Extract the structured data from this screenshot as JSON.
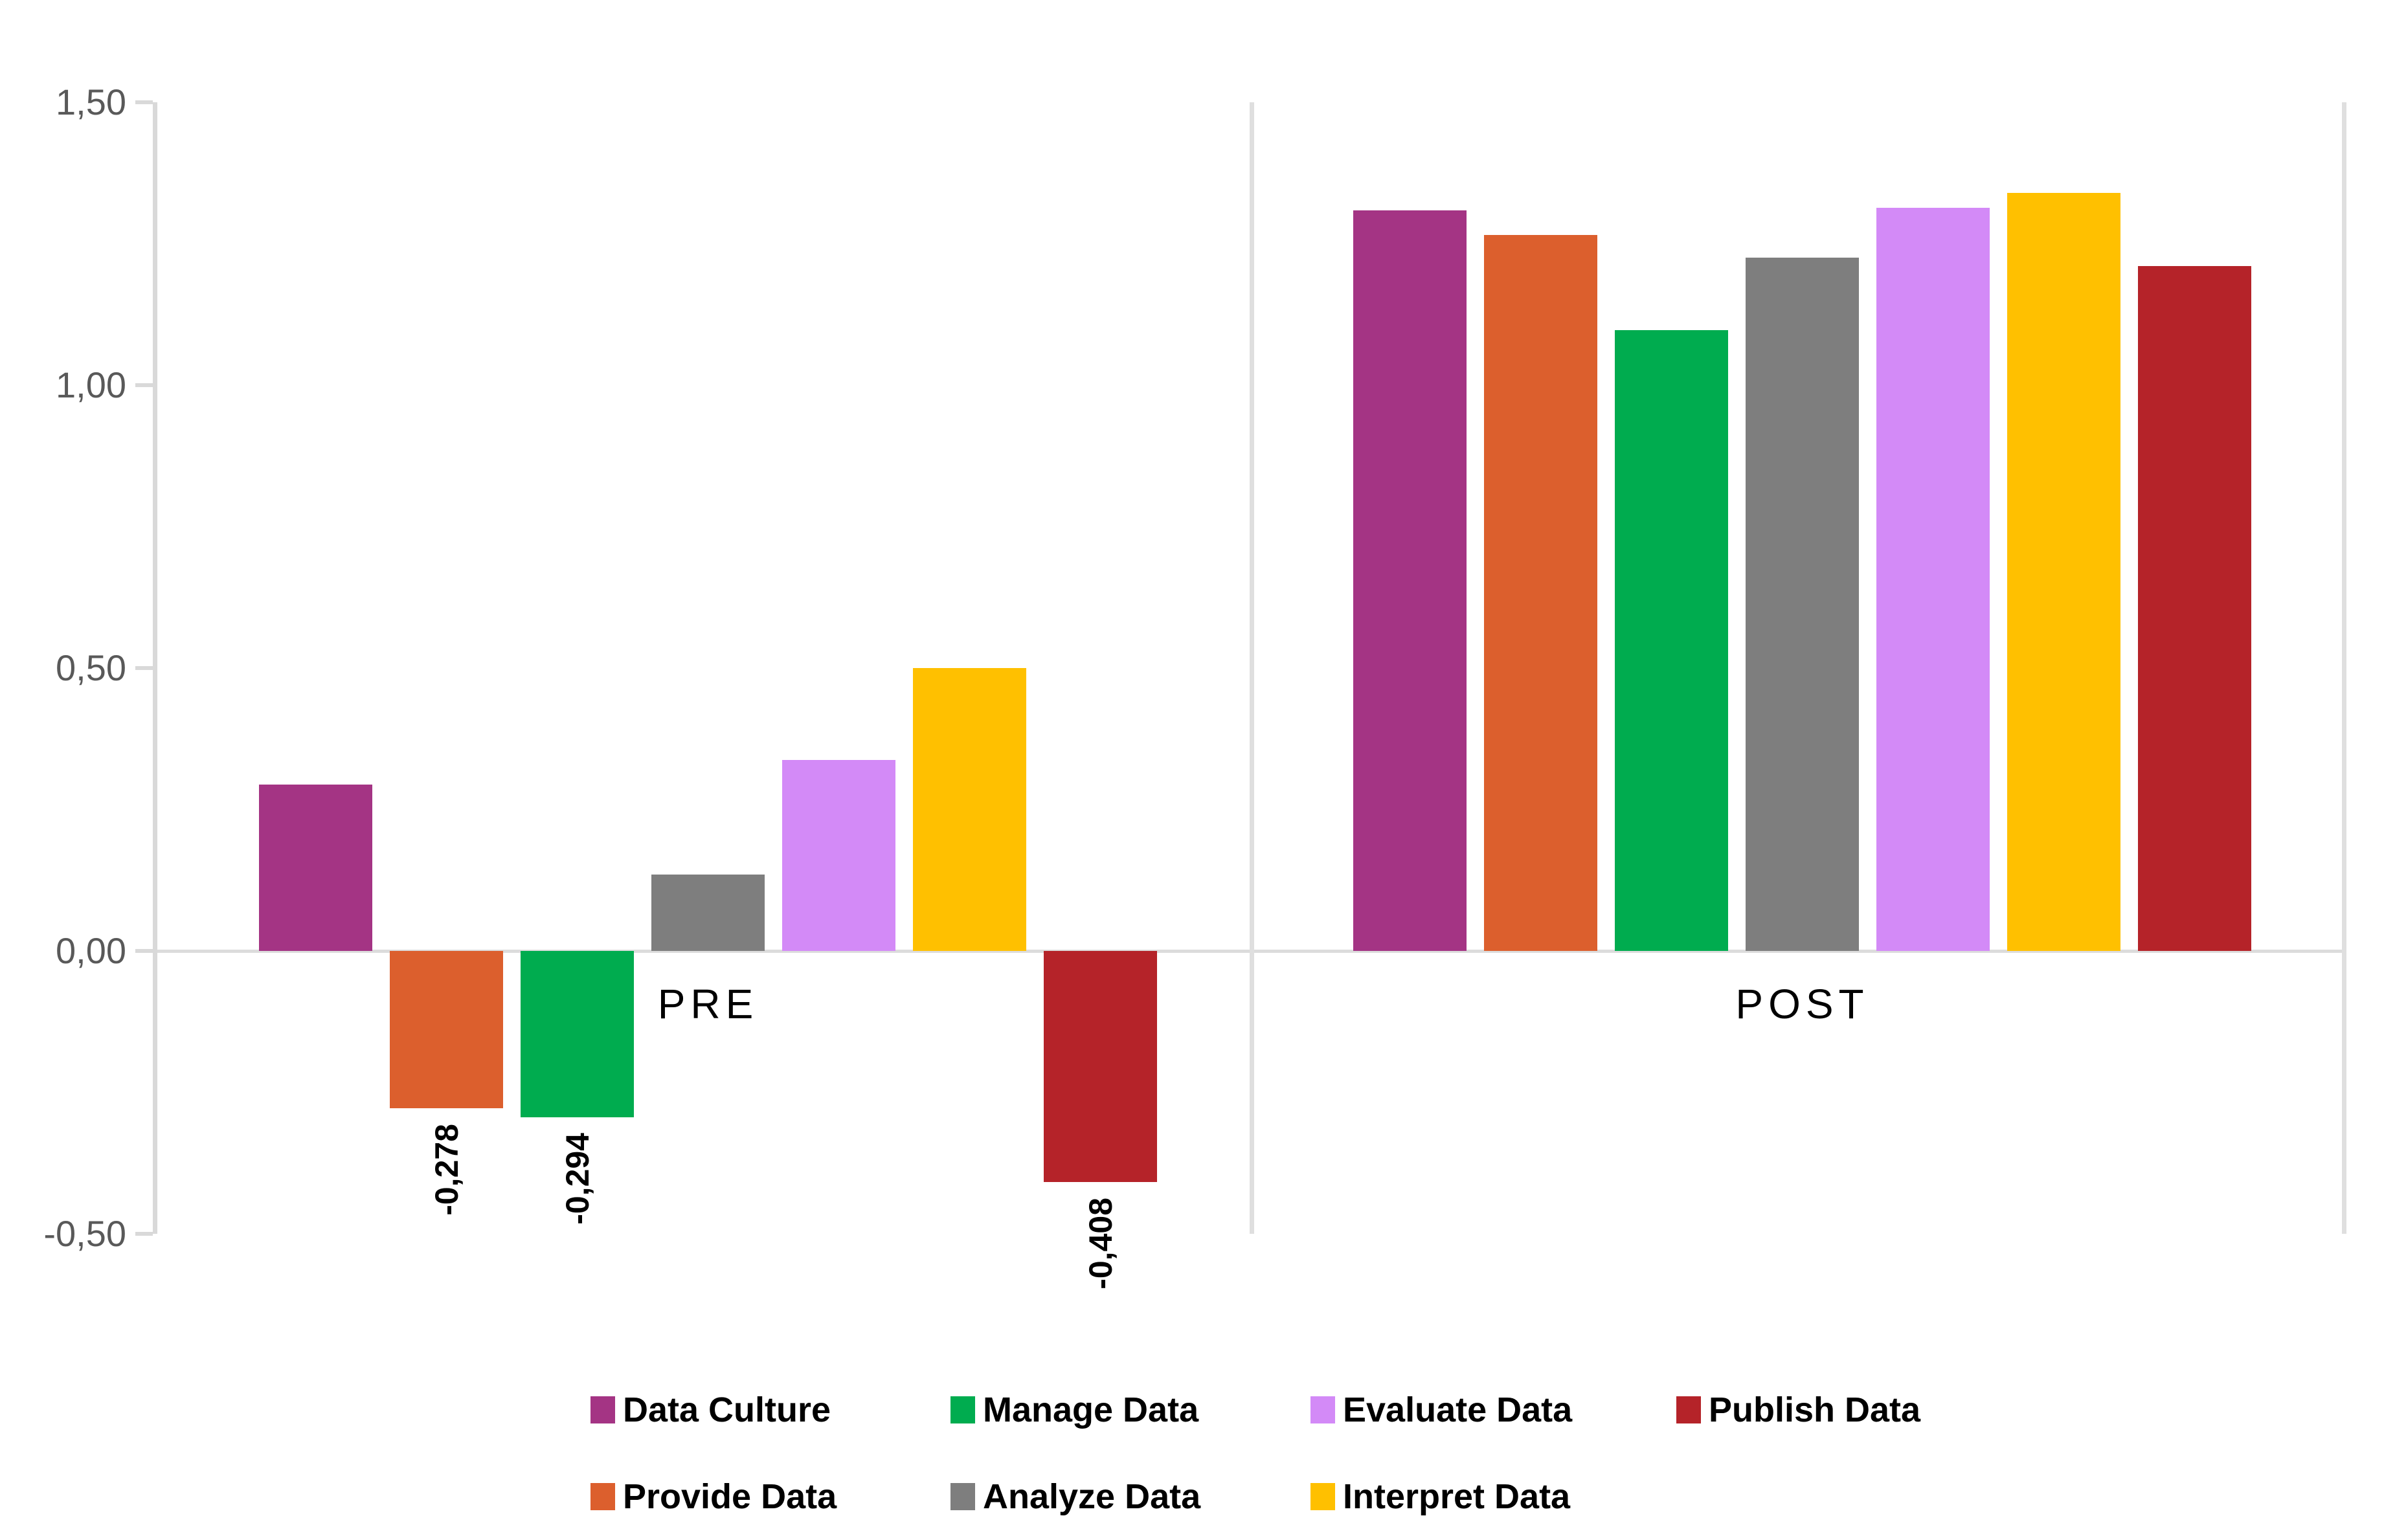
{
  "chart_data": {
    "type": "bar",
    "title": "",
    "xlabel": "",
    "ylabel": "",
    "grid": false,
    "decimal_style": "comma",
    "y_axis": {
      "min": -0.5,
      "max": 1.5,
      "tick_values": [
        1.5,
        1.0,
        0.5,
        0.0,
        -0.5
      ],
      "ticks": [
        "1,50",
        "1,00",
        "0,50",
        "0,00",
        "-0,50"
      ]
    },
    "series": [
      {
        "name": "Data Culture",
        "color": "#A43484"
      },
      {
        "name": "Provide Data",
        "color": "#DC5F2D"
      },
      {
        "name": "Manage Data",
        "color": "#00AC4F"
      },
      {
        "name": "Analyze Data",
        "color": "#7E7E7E"
      },
      {
        "name": "Evaluate Data",
        "color": "#D38AF7"
      },
      {
        "name": "Interpret Data",
        "color": "#FFC000"
      },
      {
        "name": "Publish Data",
        "color": "#B52329"
      }
    ],
    "groups": [
      {
        "label": "PRE",
        "values": [
          0.294,
          -0.278,
          -0.294,
          0.135,
          0.338,
          0.5,
          -0.408
        ],
        "value_labels": [
          "0,294",
          "-0,278",
          "-0,294",
          "0,135",
          "0,338",
          "0,500",
          "-0,408"
        ]
      },
      {
        "label": "POST",
        "values": [
          1.309,
          1.265,
          1.097,
          1.225,
          1.313,
          1.34,
          1.211
        ],
        "value_labels": [
          "1,309",
          "1,265",
          "1,097",
          "1,225",
          "1,313",
          "1,340",
          "1,211"
        ]
      }
    ],
    "legend": {
      "position": "bottom",
      "rows": [
        [
          "Data Culture",
          "Manage Data",
          "Evaluate Data",
          "Publish Data"
        ],
        [
          "Provide Data",
          "Analyze Data",
          "Interpret Data"
        ]
      ]
    }
  },
  "colors": {
    "background": "#FFFFFF",
    "axis_line": "#D9D9D9",
    "zero_line": "#DCDCDC",
    "divider_line": "#DFDFDF",
    "tick_label": "#595959",
    "data_label": "#000000"
  }
}
